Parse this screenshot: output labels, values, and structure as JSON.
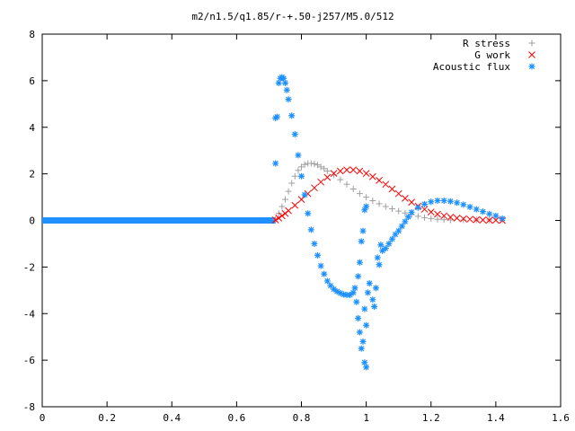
{
  "chart_data": {
    "type": "scatter",
    "title": "m2/n1.5/q1.85/r-+.50-j257/M5.0/512",
    "xlabel": "",
    "ylabel": "",
    "xlim": [
      0,
      1.6
    ],
    "ylim": [
      -8,
      8
    ],
    "xticks": [
      "0",
      "0.2",
      "0.4",
      "0.6",
      "0.8",
      "1",
      "1.2",
      "1.4",
      "1.6"
    ],
    "yticks": [
      "8",
      "6",
      "4",
      "2",
      "0",
      "-2",
      "-4",
      "-6",
      "-8"
    ],
    "grid": false,
    "legend_position": "top-right",
    "series": [
      {
        "name": "R stress",
        "marker": "+",
        "color": "#a0a0a0",
        "points": [
          [
            0.72,
            0.05
          ],
          [
            0.73,
            0.3
          ],
          [
            0.74,
            0.6
          ],
          [
            0.75,
            0.9
          ],
          [
            0.76,
            1.25
          ],
          [
            0.77,
            1.6
          ],
          [
            0.78,
            1.9
          ],
          [
            0.79,
            2.15
          ],
          [
            0.8,
            2.3
          ],
          [
            0.81,
            2.4
          ],
          [
            0.82,
            2.45
          ],
          [
            0.83,
            2.45
          ],
          [
            0.84,
            2.43
          ],
          [
            0.85,
            2.38
          ],
          [
            0.86,
            2.3
          ],
          [
            0.87,
            2.22
          ],
          [
            0.88,
            2.12
          ],
          [
            0.9,
            1.95
          ],
          [
            0.92,
            1.75
          ],
          [
            0.94,
            1.55
          ],
          [
            0.96,
            1.35
          ],
          [
            0.98,
            1.15
          ],
          [
            1.0,
            1.0
          ],
          [
            1.02,
            0.85
          ],
          [
            1.04,
            0.72
          ],
          [
            1.06,
            0.6
          ],
          [
            1.08,
            0.5
          ],
          [
            1.1,
            0.4
          ],
          [
            1.12,
            0.32
          ],
          [
            1.14,
            0.25
          ],
          [
            1.16,
            0.18
          ],
          [
            1.18,
            0.12
          ],
          [
            1.2,
            0.08
          ],
          [
            1.22,
            0.05
          ],
          [
            1.24,
            0.03
          ],
          [
            1.26,
            0.02
          ],
          [
            1.3,
            0.02
          ],
          [
            1.34,
            0.02
          ],
          [
            1.38,
            0.02
          ],
          [
            1.42,
            0.02
          ]
        ]
      },
      {
        "name": "G work",
        "marker": "x",
        "color": "#ff0000",
        "points": [
          [
            0.72,
            0.02
          ],
          [
            0.73,
            0.1
          ],
          [
            0.74,
            0.2
          ],
          [
            0.75,
            0.3
          ],
          [
            0.76,
            0.42
          ],
          [
            0.78,
            0.65
          ],
          [
            0.8,
            0.9
          ],
          [
            0.82,
            1.15
          ],
          [
            0.84,
            1.4
          ],
          [
            0.86,
            1.65
          ],
          [
            0.88,
            1.85
          ],
          [
            0.9,
            2.02
          ],
          [
            0.92,
            2.12
          ],
          [
            0.94,
            2.17
          ],
          [
            0.96,
            2.17
          ],
          [
            0.98,
            2.12
          ],
          [
            1.0,
            2.02
          ],
          [
            1.02,
            1.88
          ],
          [
            1.04,
            1.72
          ],
          [
            1.06,
            1.55
          ],
          [
            1.08,
            1.35
          ],
          [
            1.1,
            1.15
          ],
          [
            1.12,
            0.95
          ],
          [
            1.14,
            0.78
          ],
          [
            1.16,
            0.62
          ],
          [
            1.18,
            0.48
          ],
          [
            1.2,
            0.36
          ],
          [
            1.22,
            0.27
          ],
          [
            1.24,
            0.2
          ],
          [
            1.26,
            0.14
          ],
          [
            1.28,
            0.1
          ],
          [
            1.3,
            0.07
          ],
          [
            1.32,
            0.05
          ],
          [
            1.34,
            0.03
          ],
          [
            1.36,
            0.02
          ],
          [
            1.38,
            0.01
          ],
          [
            1.4,
            0.01
          ],
          [
            1.42,
            0.0
          ]
        ]
      },
      {
        "name": "Acoustic flux",
        "marker": "*",
        "color": "#1e90ff",
        "points": [
          [
            0.72,
            2.45
          ],
          [
            0.72,
            4.4
          ],
          [
            0.725,
            4.45
          ],
          [
            0.73,
            5.9
          ],
          [
            0.735,
            6.1
          ],
          [
            0.74,
            6.15
          ],
          [
            0.745,
            6.1
          ],
          [
            0.75,
            5.9
          ],
          [
            0.755,
            5.6
          ],
          [
            0.76,
            5.2
          ],
          [
            0.77,
            4.5
          ],
          [
            0.78,
            3.7
          ],
          [
            0.79,
            2.8
          ],
          [
            0.8,
            1.9
          ],
          [
            0.81,
            1.1
          ],
          [
            0.82,
            0.3
          ],
          [
            0.83,
            -0.4
          ],
          [
            0.84,
            -1.0
          ],
          [
            0.85,
            -1.5
          ],
          [
            0.86,
            -1.95
          ],
          [
            0.87,
            -2.3
          ],
          [
            0.88,
            -2.6
          ],
          [
            0.89,
            -2.8
          ],
          [
            0.9,
            -2.95
          ],
          [
            0.91,
            -3.05
          ],
          [
            0.92,
            -3.12
          ],
          [
            0.93,
            -3.18
          ],
          [
            0.94,
            -3.2
          ],
          [
            0.95,
            -3.2
          ],
          [
            0.96,
            -3.1
          ],
          [
            0.965,
            -2.9
          ],
          [
            0.97,
            -3.5
          ],
          [
            0.975,
            -4.2
          ],
          [
            0.98,
            -4.8
          ],
          [
            0.985,
            -5.5
          ],
          [
            0.99,
            -5.2
          ],
          [
            0.995,
            -6.1
          ],
          [
            1.0,
            -6.3
          ],
          [
            0.975,
            -2.4
          ],
          [
            0.98,
            -1.8
          ],
          [
            0.985,
            -0.9
          ],
          [
            0.99,
            -0.45
          ],
          [
            0.995,
            0.45
          ],
          [
            1.0,
            0.6
          ],
          [
            0.995,
            -3.8
          ],
          [
            1.0,
            -4.5
          ],
          [
            1.005,
            -3.1
          ],
          [
            1.01,
            -2.7
          ],
          [
            1.02,
            -3.4
          ],
          [
            1.025,
            -3.7
          ],
          [
            1.03,
            -2.9
          ],
          [
            1.035,
            -1.6
          ],
          [
            1.04,
            -1.9
          ],
          [
            1.045,
            -1.05
          ],
          [
            1.05,
            -1.3
          ],
          [
            1.06,
            -1.2
          ],
          [
            1.07,
            -1.0
          ],
          [
            1.08,
            -0.8
          ],
          [
            1.09,
            -0.6
          ],
          [
            1.1,
            -0.45
          ],
          [
            1.11,
            -0.25
          ],
          [
            1.12,
            -0.05
          ],
          [
            1.13,
            0.15
          ],
          [
            1.14,
            0.35
          ],
          [
            1.16,
            0.55
          ],
          [
            1.18,
            0.7
          ],
          [
            1.2,
            0.8
          ],
          [
            1.22,
            0.85
          ],
          [
            1.24,
            0.85
          ],
          [
            1.26,
            0.82
          ],
          [
            1.28,
            0.76
          ],
          [
            1.3,
            0.68
          ],
          [
            1.32,
            0.58
          ],
          [
            1.34,
            0.48
          ],
          [
            1.36,
            0.38
          ],
          [
            1.38,
            0.28
          ],
          [
            1.4,
            0.2
          ],
          [
            1.42,
            0.08
          ]
        ]
      }
    ],
    "flat_segment": {
      "from": 0.0,
      "to": 0.72,
      "y": 0.0
    }
  }
}
